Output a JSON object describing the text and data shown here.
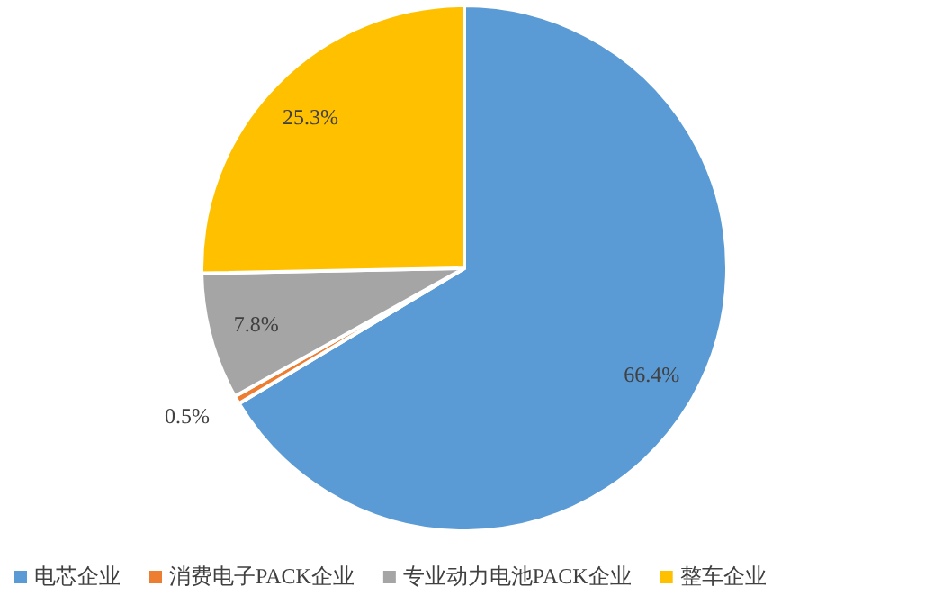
{
  "chart_data": {
    "type": "pie",
    "categories": [
      "电芯企业",
      "消费电子PACK企业",
      "专业动力电池PACK企业",
      "整车企业"
    ],
    "values": [
      66.4,
      0.5,
      7.8,
      25.3
    ],
    "colors": [
      "#5b9bd5",
      "#ed7d31",
      "#a5a5a5",
      "#ffc000"
    ],
    "value_labels": [
      "66.4%",
      "0.5%",
      "7.8%",
      "25.3%"
    ],
    "legend": "bottom"
  }
}
